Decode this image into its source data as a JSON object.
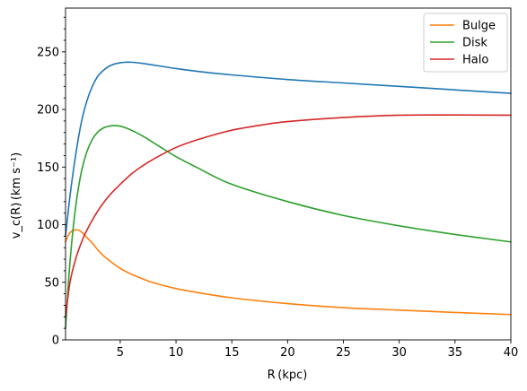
{
  "chart_data": {
    "type": "line",
    "xlabel": "R (kpc)",
    "ylabel": "v_c(R) (km s⁻¹)",
    "xlim": [
      0.1,
      40
    ],
    "ylim": [
      0,
      288
    ],
    "x_ticks": [
      5,
      10,
      15,
      20,
      25,
      30,
      35,
      40
    ],
    "y_ticks": [
      0,
      50,
      100,
      150,
      200,
      250
    ],
    "y_minor_step": 10,
    "grid": false,
    "legend_placement": "top-right",
    "series": [
      {
        "name": "",
        "color": "#1f77b4",
        "in_legend": false,
        "x": [
          0.1,
          0.5,
          1,
          1.5,
          2,
          2.5,
          3,
          3.5,
          4,
          4.5,
          5,
          5.5,
          6,
          7,
          8,
          9,
          10,
          12,
          15,
          20,
          25,
          30,
          35,
          40
        ],
        "y": [
          90,
          125,
          160,
          188,
          207,
          220,
          229,
          234,
          237.5,
          239.5,
          240.5,
          241,
          241,
          240,
          238.5,
          237,
          235.5,
          233,
          230,
          226,
          223,
          220,
          217,
          214
        ]
      },
      {
        "name": "Bulge",
        "color": "#ff7f0e",
        "in_legend": true,
        "x": [
          0.1,
          0.3,
          0.6,
          1,
          1.3,
          1.6,
          2,
          2.5,
          3,
          3.5,
          4,
          5,
          6,
          7,
          8,
          10,
          12,
          15,
          20,
          25,
          30,
          35,
          40
        ],
        "y": [
          85,
          90,
          94,
          95.5,
          95,
          93,
          89,
          84,
          78,
          73,
          69,
          62,
          57,
          53,
          49.5,
          44.5,
          41,
          36.5,
          31.5,
          28,
          25.8,
          23.8,
          22
        ]
      },
      {
        "name": "Disk",
        "color": "#2ca02c",
        "in_legend": true,
        "x": [
          0.1,
          0.5,
          1,
          1.5,
          2,
          2.5,
          3,
          3.5,
          4,
          4.5,
          5,
          5.5,
          6,
          7,
          8,
          9,
          10,
          12,
          15,
          20,
          25,
          30,
          35,
          40
        ],
        "y": [
          10,
          68,
          115,
          145,
          163,
          174,
          180.5,
          184,
          185.5,
          186,
          185.5,
          184,
          182,
          177,
          171,
          165,
          159,
          149,
          135,
          120,
          108,
          99,
          91.5,
          85
        ]
      },
      {
        "name": "Halo",
        "color": "#d62728",
        "in_legend": true,
        "x": [
          0.1,
          0.5,
          1,
          1.5,
          2,
          3,
          4,
          5,
          6,
          7,
          8,
          10,
          12,
          15,
          18,
          20,
          25,
          30,
          35,
          40
        ],
        "y": [
          20,
          50,
          70,
          84,
          95,
          112,
          125,
          135,
          144,
          151,
          157,
          167,
          174,
          182,
          187,
          189.5,
          193,
          195,
          195.2,
          195
        ]
      }
    ]
  }
}
